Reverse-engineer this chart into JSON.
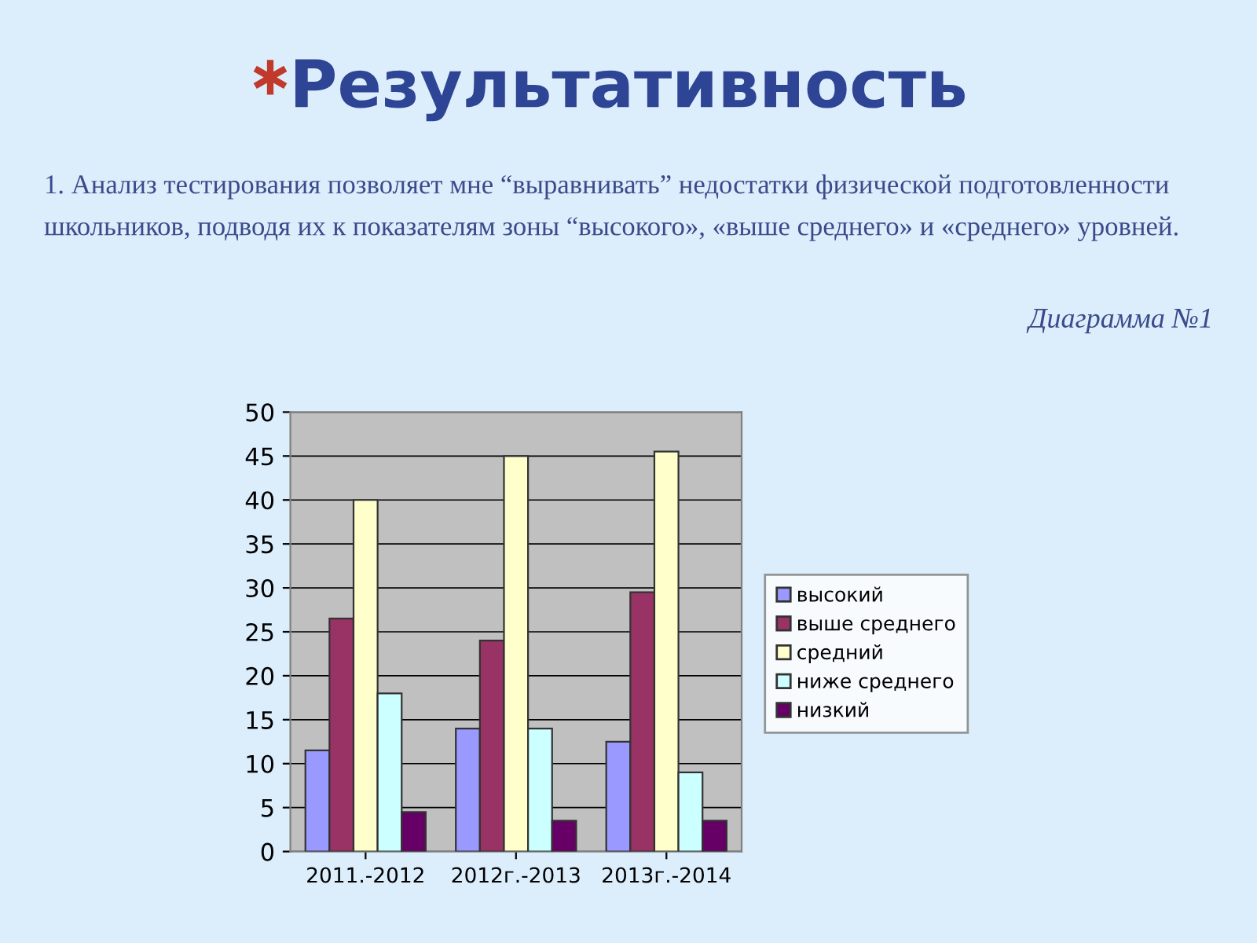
{
  "chart_data": {
    "type": "bar",
    "title": "Результативность",
    "subtitle": "1. Анализ тестирования позволяет мне “выравнивать” недостатки физической подготовленности школьников, подводя их к показателям зоны “высокого», «выше среднего» и «среднего» уровней.",
    "annotations": [
      "Диаграмма №1"
    ],
    "categories": [
      "2011.-2012",
      "2012г.-2013",
      "2013г.-2014"
    ],
    "series": [
      {
        "name": "высокий",
        "color": "#9999ff",
        "values": [
          11.5,
          14,
          12.5
        ]
      },
      {
        "name": "выше среднего",
        "color": "#993366",
        "values": [
          26.5,
          24,
          29.5
        ]
      },
      {
        "name": "средний",
        "color": "#ffffcc",
        "values": [
          40,
          45,
          45.5
        ]
      },
      {
        "name": "ниже среднего",
        "color": "#ccffff",
        "values": [
          18,
          14,
          9
        ]
      },
      {
        "name": "низкий",
        "color": "#660066",
        "values": [
          4.5,
          3.5,
          3.5
        ]
      }
    ],
    "ylim": [
      0,
      50
    ],
    "yticks": [
      0,
      5,
      10,
      15,
      20,
      25,
      30,
      35,
      40,
      45,
      50
    ],
    "grid": "y",
    "legend": "right"
  }
}
